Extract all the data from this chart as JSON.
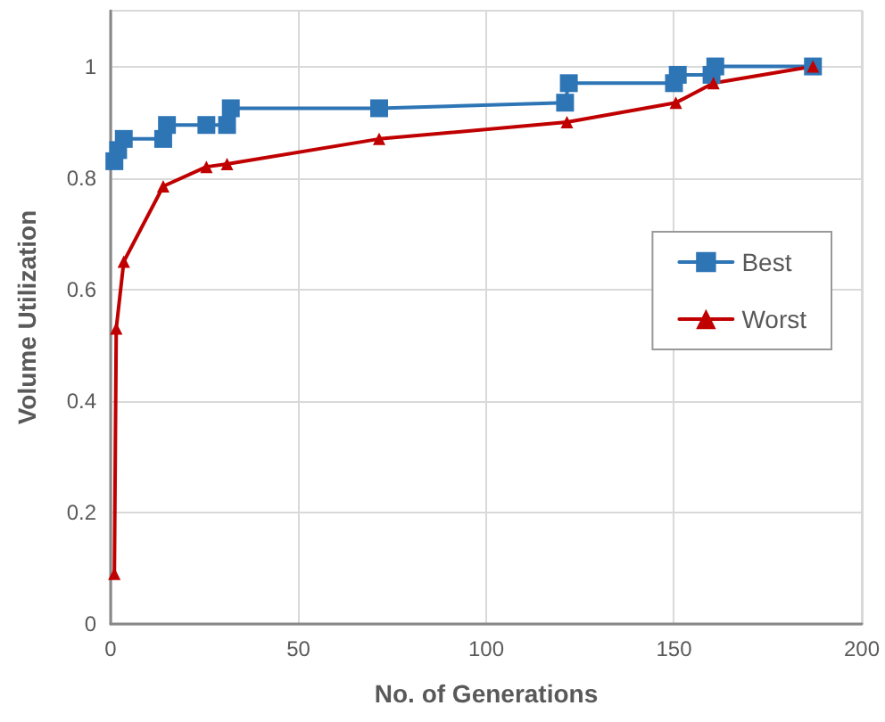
{
  "chart_data": {
    "type": "line",
    "xlabel": "No. of Generations",
    "ylabel": "Volume Utilization",
    "xlim": [
      0,
      200
    ],
    "xticks": [
      0,
      50,
      100,
      150,
      200
    ],
    "ylim": [
      0,
      1.1
    ],
    "yticks": [
      0,
      0.2,
      0.4,
      0.6,
      0.8,
      1
    ],
    "grid": true,
    "legend": "right",
    "line_style": "solid",
    "series": [
      {
        "name": "Best",
        "color": "#2e75b6",
        "marker": "square",
        "x": [
          1,
          2,
          3.5,
          14,
          15,
          25.5,
          31,
          32,
          71.5,
          121,
          122,
          150,
          151,
          160,
          161,
          187
        ],
        "values": [
          0.83,
          0.85,
          0.87,
          0.87,
          0.895,
          0.895,
          0.895,
          0.925,
          0.925,
          0.935,
          0.97,
          0.97,
          0.985,
          0.985,
          1,
          1
        ]
      },
      {
        "name": "Worst",
        "color": "#c00000",
        "marker": "triangle",
        "x": [
          1,
          1.5,
          3.5,
          14,
          25.5,
          31,
          71.5,
          121.5,
          150.5,
          160.5,
          187
        ],
        "values": [
          0.09,
          0.53,
          0.65,
          0.785,
          0.82,
          0.825,
          0.87,
          0.9,
          0.935,
          0.97,
          1
        ]
      }
    ]
  }
}
